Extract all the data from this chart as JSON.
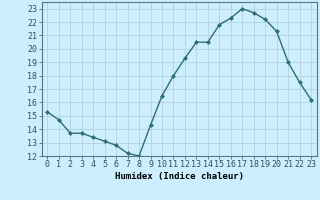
{
  "x": [
    0,
    1,
    2,
    3,
    4,
    5,
    6,
    7,
    8,
    9,
    10,
    11,
    12,
    13,
    14,
    15,
    16,
    17,
    18,
    19,
    20,
    21,
    22,
    23
  ],
  "y": [
    15.3,
    14.7,
    13.7,
    13.7,
    13.4,
    13.1,
    12.8,
    12.2,
    12.0,
    14.3,
    16.5,
    18.0,
    19.3,
    20.5,
    20.5,
    21.8,
    22.3,
    23.0,
    22.7,
    22.2,
    21.3,
    19.0,
    17.5,
    16.2
  ],
  "line_color": "#2d7070",
  "marker": "D",
  "marker_size": 2,
  "bg_color": "#cceeff",
  "grid_color": "#b0cece",
  "xlabel": "Humidex (Indice chaleur)",
  "xlim": [
    -0.5,
    23.5
  ],
  "ylim": [
    12,
    23.5
  ],
  "yticks": [
    12,
    13,
    14,
    15,
    16,
    17,
    18,
    19,
    20,
    21,
    22,
    23
  ],
  "xticks": [
    0,
    1,
    2,
    3,
    4,
    5,
    6,
    7,
    8,
    9,
    10,
    11,
    12,
    13,
    14,
    15,
    16,
    17,
    18,
    19,
    20,
    21,
    22,
    23
  ],
  "xlabel_fontsize": 6.5,
  "tick_fontsize": 6.0,
  "linewidth": 1.0
}
